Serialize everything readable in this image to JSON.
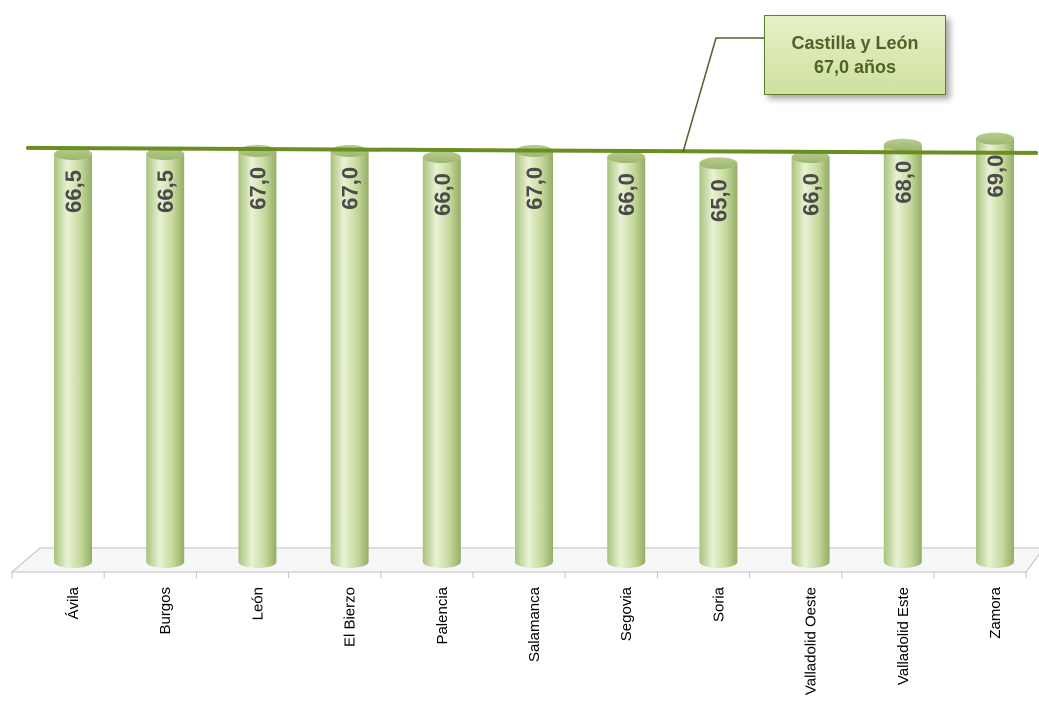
{
  "chart_data": {
    "type": "bar",
    "categories": [
      "Ávila",
      "Burgos",
      "León",
      "El Bierzo",
      "Palencia",
      "Salamanca",
      "Segovia",
      "Soria",
      "Valladolid Oeste",
      "Valladolid Este",
      "Zamora"
    ],
    "value_labels": [
      "66,5",
      "66,5",
      "67,0",
      "67,0",
      "66,0",
      "67,0",
      "66,0",
      "65,0",
      "66,0",
      "68,0",
      "69,0"
    ],
    "values": [
      66.5,
      66.5,
      67.0,
      67.0,
      66.0,
      67.0,
      66.0,
      65.0,
      66.0,
      68.0,
      69.0
    ],
    "reference_line": {
      "value": 67.0,
      "label_line1": "Castilla y León",
      "label_line2": "67,0 años"
    },
    "colors": {
      "bar": "#cfe0a8",
      "bar_dark": "#8faa60",
      "line": "#6b8e23",
      "label": "#4a4a4a"
    },
    "title": "",
    "xlabel": "",
    "ylabel": "",
    "grid": false,
    "legend": "none"
  }
}
